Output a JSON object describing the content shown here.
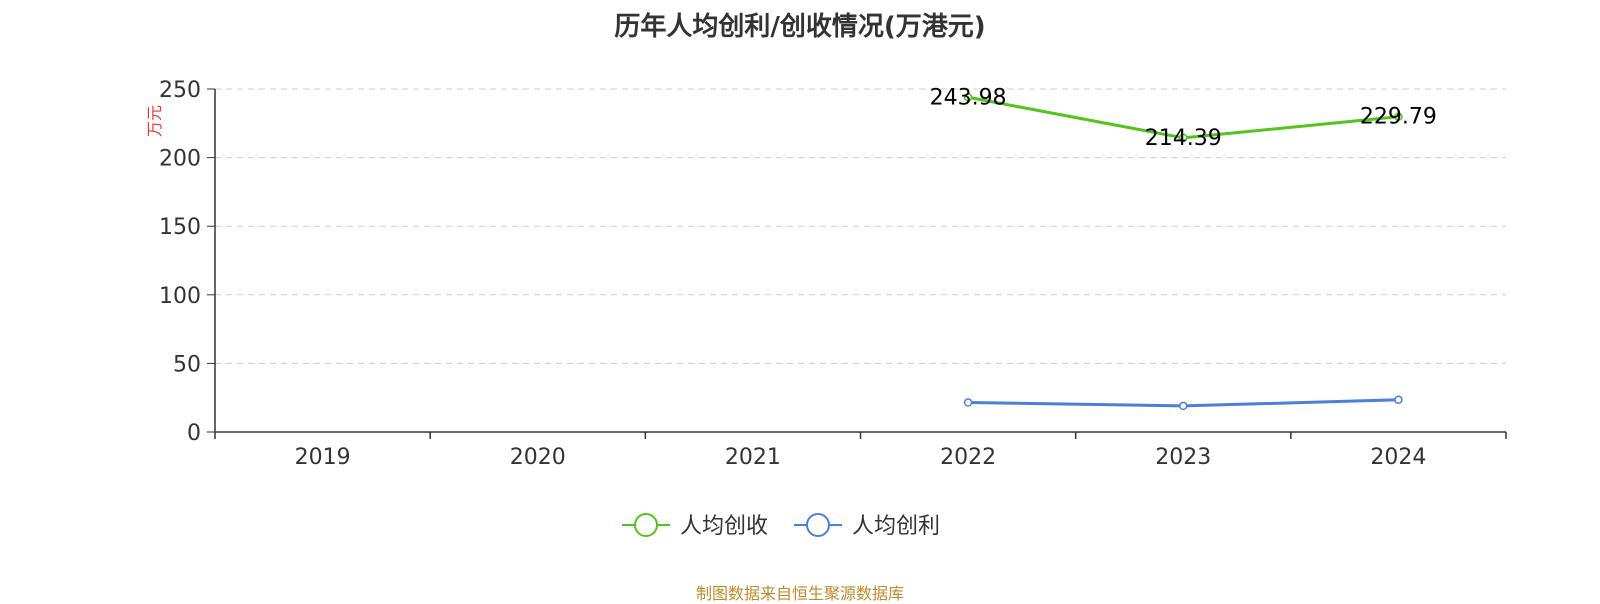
{
  "chart_data": {
    "type": "line",
    "title": "历年人均创利/创收情况(万港元)",
    "ylabel": "万元",
    "xlabel": "",
    "categories": [
      "2019",
      "2020",
      "2021",
      "2022",
      "2023",
      "2024"
    ],
    "ylim": [
      0,
      250
    ],
    "yticks": [
      0,
      50,
      100,
      150,
      200,
      250
    ],
    "grid": true,
    "legend_position": "bottom-center",
    "series": [
      {
        "name": "人均创收",
        "color": "#52c41a",
        "values": [
          null,
          null,
          null,
          243.98,
          214.39,
          229.79
        ],
        "show_labels": true
      },
      {
        "name": "人均创利",
        "color": "#4a7fdc",
        "values": [
          null,
          null,
          null,
          21.5,
          19.0,
          23.5
        ],
        "show_labels": false
      }
    ]
  },
  "source_text": "制图数据来自恒生聚源数据库"
}
